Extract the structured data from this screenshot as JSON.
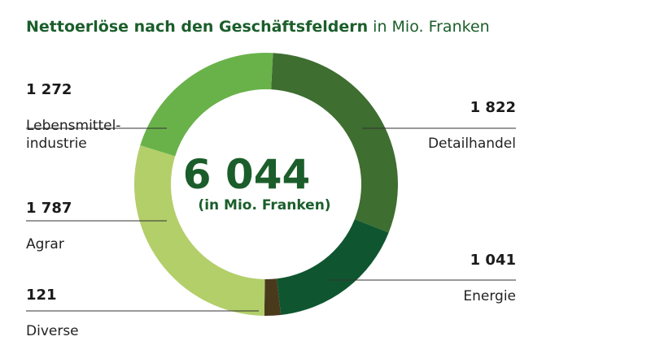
{
  "chart_data": {
    "type": "pie",
    "title": "Nettoerlöse nach den Geschäftsfeldern",
    "unit": "in Mio. Franken",
    "center": {
      "total": "6 044",
      "caption": "(in Mio. Franken)"
    },
    "slices": [
      {
        "label": "Detailhandel",
        "label_lines": "Detailhandel",
        "value": 1822,
        "value_text": "1 822",
        "color": "#3e6e30"
      },
      {
        "label": "Energie",
        "label_lines": "Energie",
        "value": 1041,
        "value_text": "1 041",
        "color": "#0f5630"
      },
      {
        "label": "Diverse",
        "label_lines": "Diverse",
        "value": 121,
        "value_text": "121",
        "color": "#4a3a1c"
      },
      {
        "label": "Agrar",
        "label_lines": "Agrar",
        "value": 1787,
        "value_text": "1 787",
        "color": "#b3cf6a"
      },
      {
        "label": "Lebensmittelindustrie",
        "label_lines": "Lebensmittel-\nindustrie",
        "value": 1272,
        "value_text": "1 272",
        "color": "#69b24a"
      }
    ]
  }
}
